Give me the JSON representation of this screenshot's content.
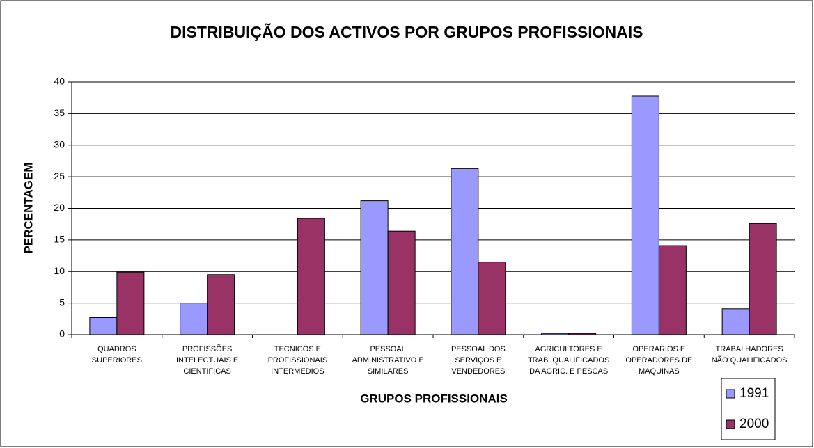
{
  "chart_data": {
    "type": "bar",
    "title": "DISTRIBUIÇÃO DOS ACTIVOS POR GRUPOS PROFISSIONAIS",
    "x_label": "GRUPOS PROFISSIONAIS",
    "y_label": "PERCENTAGEM",
    "categories": [
      "QUADROS\nSUPERIORES",
      "PROFISSÕES\nINTELECTUAIS E\nCIENTIFICAS",
      "TECNICOS E\nPROFISSIONAIS\nINTERMEDIOS",
      "PESSOAL\nADMINISTRATIVO E\nSIMILARES",
      "PESSOAL DOS\nSERVIÇOS E\nVENDEDORES",
      "AGRICULTORES E\nTRAB. QUALIFICADOS\nDA AGRIC. E PESCAS",
      "OPERARIOS E\nOPERADORES DE\nMAQUINAS",
      "TRABALHADORES\nNÃO QUALIFICADOS"
    ],
    "series": [
      {
        "name": "1991",
        "color": "#9999ff",
        "values": [
          2.7,
          5.0,
          0,
          21.2,
          26.3,
          0.2,
          37.8,
          4.1
        ]
      },
      {
        "name": "2000",
        "color": "#993366",
        "values": [
          9.9,
          9.5,
          18.4,
          16.4,
          11.5,
          0.2,
          14.1,
          17.6
        ]
      }
    ],
    "ylim": [
      0,
      40
    ],
    "yticks": [
      0,
      5,
      10,
      15,
      20,
      25,
      30,
      35,
      40
    ],
    "grid": true,
    "legend": "bottom-right"
  }
}
